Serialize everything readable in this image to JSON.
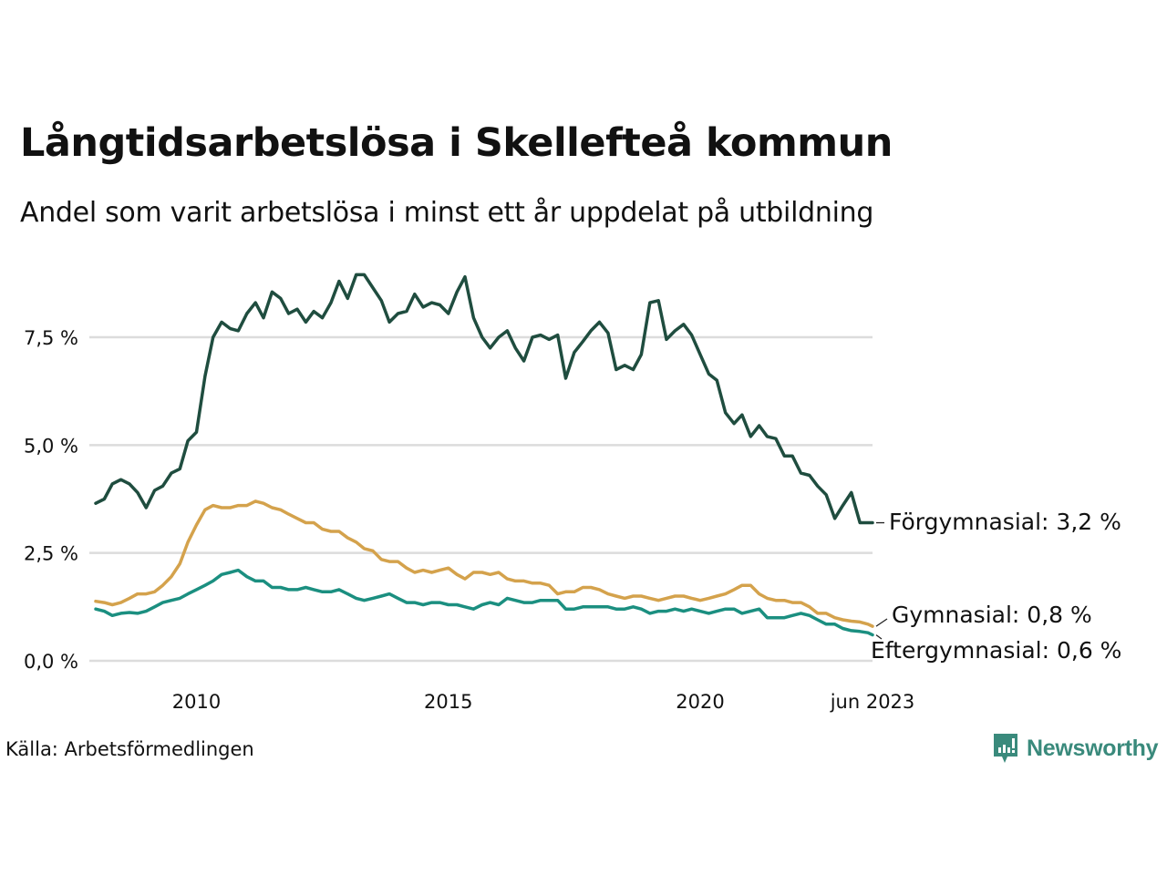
{
  "header": {
    "title": "Långtidsarbetslösa i Skellefteå kommun",
    "subtitle": "Andel som varit arbetslösa i minst ett år uppdelat på utbildning"
  },
  "footer": {
    "source": "Källa: Arbetsförmedlingen",
    "brand": "Newsworthy"
  },
  "chart_data": {
    "type": "line",
    "title": "Långtidsarbetslösa i Skellefteå kommun",
    "subtitle": "Andel som varit arbetslösa i minst ett år uppdelat på utbildning",
    "xlabel": "",
    "ylabel": "",
    "x_range": [
      2008.0,
      2023.42
    ],
    "ylim": [
      0,
      9
    ],
    "y_ticks": [
      0,
      2.5,
      5,
      7.5
    ],
    "y_tick_labels": [
      "0,0 %",
      "2,5 %",
      "5,0 %",
      "7,5 %"
    ],
    "x_ticks": [
      2010,
      2015,
      2020,
      2023.42
    ],
    "x_tick_labels": [
      "2010",
      "2015",
      "2020",
      "jun 2023"
    ],
    "grid": true,
    "legend": "inline-right-end-labels",
    "x": [
      2008.0,
      2008.17,
      2008.33,
      2008.5,
      2008.67,
      2008.83,
      2009.0,
      2009.17,
      2009.33,
      2009.5,
      2009.67,
      2009.83,
      2010.0,
      2010.17,
      2010.33,
      2010.5,
      2010.67,
      2010.83,
      2011.0,
      2011.17,
      2011.33,
      2011.5,
      2011.67,
      2011.83,
      2012.0,
      2012.17,
      2012.33,
      2012.5,
      2012.67,
      2012.83,
      2013.0,
      2013.17,
      2013.33,
      2013.5,
      2013.67,
      2013.83,
      2014.0,
      2014.17,
      2014.33,
      2014.5,
      2014.67,
      2014.83,
      2015.0,
      2015.17,
      2015.33,
      2015.5,
      2015.67,
      2015.83,
      2016.0,
      2016.17,
      2016.33,
      2016.5,
      2016.67,
      2016.83,
      2017.0,
      2017.17,
      2017.33,
      2017.5,
      2017.67,
      2017.83,
      2018.0,
      2018.17,
      2018.33,
      2018.5,
      2018.67,
      2018.83,
      2019.0,
      2019.17,
      2019.33,
      2019.5,
      2019.67,
      2019.83,
      2020.0,
      2020.17,
      2020.33,
      2020.5,
      2020.67,
      2020.83,
      2021.0,
      2021.17,
      2021.33,
      2021.5,
      2021.67,
      2021.83,
      2022.0,
      2022.17,
      2022.33,
      2022.5,
      2022.67,
      2022.83,
      2023.0,
      2023.17,
      2023.33,
      2023.42
    ],
    "series": [
      {
        "name": "Förgymnasial",
        "end_label": "Förgymnasial: 3,2 %",
        "color": "#1f4d3f",
        "values": [
          3.65,
          3.75,
          4.1,
          4.2,
          4.1,
          3.9,
          3.55,
          3.95,
          4.05,
          4.35,
          4.45,
          5.1,
          5.3,
          6.6,
          7.5,
          7.85,
          7.7,
          7.65,
          8.05,
          8.3,
          7.95,
          8.55,
          8.4,
          8.05,
          8.15,
          7.85,
          8.1,
          7.95,
          8.3,
          8.8,
          8.4,
          8.95,
          8.95,
          8.65,
          8.35,
          7.85,
          8.05,
          8.1,
          8.5,
          8.2,
          8.3,
          8.25,
          8.05,
          8.55,
          8.9,
          7.95,
          7.5,
          7.25,
          7.5,
          7.65,
          7.25,
          6.95,
          7.5,
          7.55,
          7.45,
          7.55,
          6.55,
          7.15,
          7.4,
          7.65,
          7.85,
          7.6,
          6.75,
          6.85,
          6.75,
          7.1,
          8.3,
          8.35,
          7.45,
          7.65,
          7.8,
          7.55,
          7.1,
          6.65,
          6.5,
          5.75,
          5.5,
          5.7,
          5.2,
          5.45,
          5.2,
          5.15,
          4.75,
          4.75,
          4.35,
          4.3,
          4.05,
          3.85,
          3.3,
          3.6,
          3.9,
          3.2,
          3.2,
          3.2
        ],
        "last_value": 3.2
      },
      {
        "name": "Gymnasial",
        "end_label": "Gymnasial: 0,8 %",
        "color": "#d4a24c",
        "values": [
          1.38,
          1.35,
          1.3,
          1.35,
          1.45,
          1.55,
          1.55,
          1.6,
          1.75,
          1.95,
          2.25,
          2.75,
          3.15,
          3.5,
          3.6,
          3.55,
          3.55,
          3.6,
          3.6,
          3.7,
          3.65,
          3.55,
          3.5,
          3.4,
          3.3,
          3.2,
          3.2,
          3.05,
          3.0,
          3.0,
          2.85,
          2.75,
          2.6,
          2.55,
          2.35,
          2.3,
          2.3,
          2.15,
          2.05,
          2.1,
          2.05,
          2.1,
          2.15,
          2.0,
          1.9,
          2.05,
          2.05,
          2.0,
          2.05,
          1.9,
          1.85,
          1.85,
          1.8,
          1.8,
          1.75,
          1.55,
          1.6,
          1.6,
          1.7,
          1.7,
          1.65,
          1.55,
          1.5,
          1.45,
          1.5,
          1.5,
          1.45,
          1.4,
          1.45,
          1.5,
          1.5,
          1.45,
          1.4,
          1.45,
          1.5,
          1.55,
          1.65,
          1.75,
          1.75,
          1.55,
          1.45,
          1.4,
          1.4,
          1.35,
          1.35,
          1.25,
          1.1,
          1.1,
          1.0,
          0.95,
          0.92,
          0.9,
          0.85,
          0.8
        ],
        "last_value": 0.8
      },
      {
        "name": "Eftergymnasial",
        "end_label": "Eftergymnasial: 0,6 %",
        "color": "#1b8f80",
        "values": [
          1.2,
          1.15,
          1.05,
          1.1,
          1.12,
          1.1,
          1.15,
          1.25,
          1.35,
          1.4,
          1.45,
          1.55,
          1.65,
          1.75,
          1.85,
          2.0,
          2.05,
          2.1,
          1.95,
          1.85,
          1.85,
          1.7,
          1.7,
          1.65,
          1.65,
          1.7,
          1.65,
          1.6,
          1.6,
          1.65,
          1.55,
          1.45,
          1.4,
          1.45,
          1.5,
          1.55,
          1.45,
          1.35,
          1.35,
          1.3,
          1.35,
          1.35,
          1.3,
          1.3,
          1.25,
          1.2,
          1.3,
          1.35,
          1.3,
          1.45,
          1.4,
          1.35,
          1.35,
          1.4,
          1.4,
          1.4,
          1.2,
          1.2,
          1.25,
          1.25,
          1.25,
          1.25,
          1.2,
          1.2,
          1.25,
          1.2,
          1.1,
          1.15,
          1.15,
          1.2,
          1.15,
          1.2,
          1.15,
          1.1,
          1.15,
          1.2,
          1.2,
          1.1,
          1.15,
          1.2,
          1.0,
          1.0,
          1.0,
          1.05,
          1.1,
          1.05,
          0.95,
          0.85,
          0.85,
          0.75,
          0.7,
          0.68,
          0.65,
          0.6
        ],
        "last_value": 0.6
      }
    ]
  }
}
